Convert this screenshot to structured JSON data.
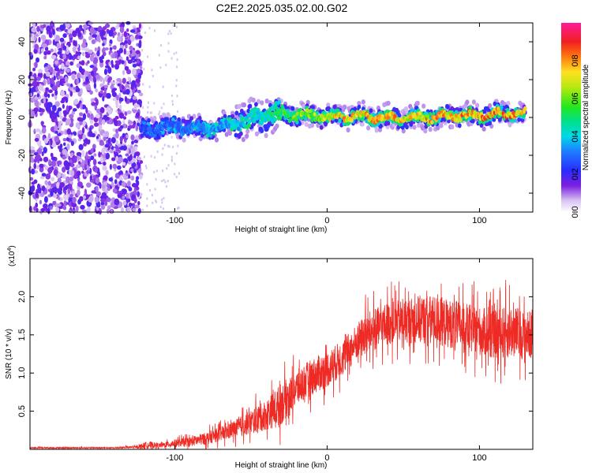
{
  "title": "C2E2.2025.035.02.00.G02",
  "colors": {
    "snr_line": "#ee2a24",
    "axes": "#000000"
  },
  "chart_data": [
    {
      "type": "heatmap",
      "xlabel": "Height of straight line (km)",
      "ylabel": "Frequency (Hz)",
      "xlim": [
        -195,
        135
      ],
      "ylim": [
        -50,
        50
      ],
      "xticks": [
        -100,
        0,
        100
      ],
      "yticks": [
        -40,
        -20,
        0,
        20,
        40
      ],
      "grid": false,
      "colorbar": {
        "label": "Normalized spectral amplitude",
        "range": [
          0,
          1
        ],
        "ticks": [
          0.0,
          0.2,
          0.4,
          0.6,
          0.8
        ],
        "colormap": "rainbow (purple → blue → cyan → green → yellow → red → magenta)"
      },
      "description_points": {
        "noise_region_x": [
          -195,
          -122
        ],
        "signal_band": {
          "x": [
            -122,
            -110,
            -100,
            -90,
            -80,
            -70,
            -60,
            -50,
            -40,
            -30,
            -20,
            -10,
            0,
            10,
            20,
            30,
            40,
            50,
            60,
            70,
            80,
            90,
            100,
            110,
            120,
            130
          ],
          "center_hz": [
            -7,
            -5,
            -5,
            -5,
            -6,
            -5,
            -3,
            -1,
            1,
            3,
            1,
            1,
            0,
            0,
            1,
            0,
            0,
            0,
            0,
            0,
            1,
            1,
            1,
            2,
            2,
            2
          ],
          "peak_amplitude": [
            0.3,
            0.35,
            0.35,
            0.35,
            0.4,
            0.4,
            0.45,
            0.45,
            0.5,
            0.6,
            0.65,
            0.75,
            0.8,
            0.85,
            0.85,
            0.85,
            0.9,
            0.85,
            0.85,
            0.9,
            0.85,
            0.9,
            0.9,
            0.9,
            0.9,
            0.9
          ]
        }
      }
    },
    {
      "type": "line",
      "xlabel": "Height of straight line (km)",
      "ylabel": "SNR (10 * v/v)",
      "yscale_label": "(x10",
      "yscale_exp": "4",
      "xlim": [
        -195,
        135
      ],
      "ylim": [
        0,
        2.5
      ],
      "xticks": [
        -100,
        0,
        100
      ],
      "yticks": [
        0.5,
        1.0,
        1.5,
        2.0
      ],
      "grid": false,
      "series": [
        {
          "x": [
            -195,
            -180,
            -160,
            -140,
            -125,
            -118,
            -110,
            -100,
            -90,
            -80,
            -70,
            -60,
            -50,
            -40,
            -35,
            -30,
            -25,
            -20,
            -15,
            -10,
            -5,
            0,
            5,
            10,
            15,
            20,
            25,
            30,
            35,
            40,
            50,
            60,
            70,
            80,
            90,
            100,
            110,
            120,
            130,
            135
          ],
          "values": [
            0.02,
            0.02,
            0.02,
            0.02,
            0.03,
            0.06,
            0.05,
            0.08,
            0.1,
            0.14,
            0.2,
            0.27,
            0.36,
            0.45,
            0.52,
            0.6,
            0.7,
            0.8,
            0.88,
            0.95,
            1.0,
            1.05,
            1.12,
            1.2,
            1.3,
            1.42,
            1.5,
            1.55,
            1.6,
            1.65,
            1.68,
            1.7,
            1.7,
            1.65,
            1.6,
            1.55,
            1.5,
            1.55,
            1.5,
            1.5
          ],
          "noise_amplitude": [
            0.01,
            0.01,
            0.01,
            0.01,
            0.02,
            0.06,
            0.04,
            0.06,
            0.08,
            0.1,
            0.12,
            0.15,
            0.2,
            0.25,
            0.3,
            0.35,
            0.3,
            0.3,
            0.3,
            0.3,
            0.3,
            0.3,
            0.3,
            0.3,
            0.3,
            0.3,
            0.35,
            0.35,
            0.35,
            0.35,
            0.35,
            0.4,
            0.4,
            0.4,
            0.4,
            0.4,
            0.4,
            0.45,
            0.4,
            0.4
          ]
        }
      ]
    }
  ]
}
